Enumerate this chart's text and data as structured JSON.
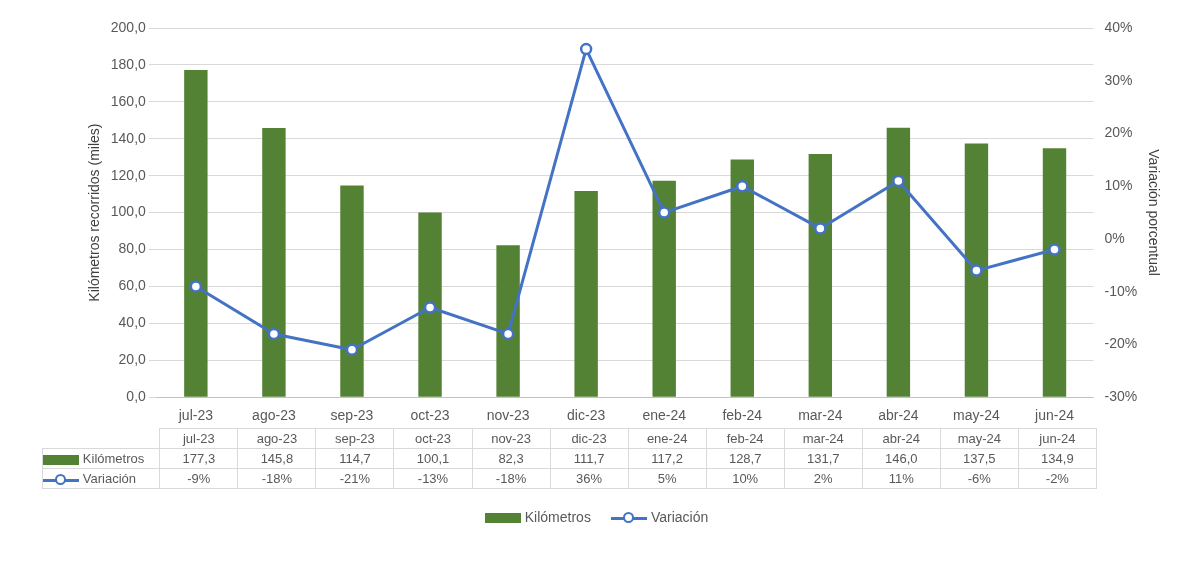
{
  "chart_data": {
    "type": "bar",
    "ylabel": "Kilómetros recorridos (miles)",
    "y2label": "Variación porcentual",
    "categories": [
      "jul-23",
      "ago-23",
      "sep-23",
      "oct-23",
      "nov-23",
      "dic-23",
      "ene-24",
      "feb-24",
      "mar-24",
      "abr-24",
      "may-24",
      "jun-24"
    ],
    "series": [
      {
        "name": "Kilómetros",
        "color": "#548235",
        "values": [
          177.3,
          145.8,
          114.7,
          100.1,
          82.3,
          111.7,
          117.2,
          128.7,
          131.7,
          146.0,
          137.5,
          134.9
        ],
        "value_labels": [
          "177,3",
          "145,8",
          "114,7",
          "100,1",
          "82,3",
          "111,7",
          "117,2",
          "128,7",
          "131,7",
          "146,0",
          "137,5",
          "134,9"
        ]
      },
      {
        "name": "Variación",
        "type": "line",
        "axis": "y2",
        "color": "#4472c4",
        "marker": "circle",
        "values": [
          -9,
          -18,
          -21,
          -13,
          -18,
          36,
          5,
          10,
          2,
          11,
          -6,
          -2
        ],
        "value_labels": [
          "-9%",
          "-18%",
          "-21%",
          "-13%",
          "-18%",
          "36%",
          "5%",
          "10%",
          "2%",
          "11%",
          "-6%",
          "-2%"
        ]
      }
    ],
    "ylim": [
      0,
      200
    ],
    "yticks": [
      {
        "value": 0,
        "label": "0,0"
      },
      {
        "value": 20,
        "label": "20,0"
      },
      {
        "value": 40,
        "label": "40,0"
      },
      {
        "value": 60,
        "label": "60,0"
      },
      {
        "value": 80,
        "label": "80,0"
      },
      {
        "value": 100,
        "label": "100,0"
      },
      {
        "value": 120,
        "label": "120,0"
      },
      {
        "value": 140,
        "label": "140,0"
      },
      {
        "value": 160,
        "label": "160,0"
      },
      {
        "value": 180,
        "label": "180,0"
      },
      {
        "value": 200,
        "label": "200,0"
      }
    ],
    "y2lim": [
      -30,
      40
    ],
    "y2ticks": [
      {
        "value": -30,
        "label": "-30%"
      },
      {
        "value": -20,
        "label": "-20%"
      },
      {
        "value": -10,
        "label": "-10%"
      },
      {
        "value": 0,
        "label": "0%"
      },
      {
        "value": 10,
        "label": "10%"
      },
      {
        "value": 20,
        "label": "20%"
      },
      {
        "value": 30,
        "label": "30%"
      },
      {
        "value": 40,
        "label": "40%"
      }
    ],
    "grid": "y",
    "legend": "bottom"
  }
}
